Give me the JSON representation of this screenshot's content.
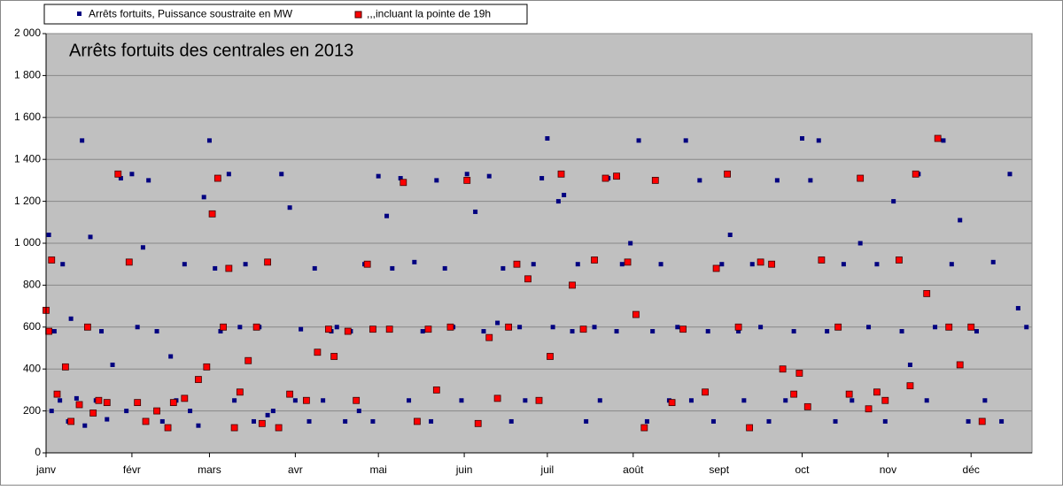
{
  "chart_data": {
    "type": "scatter",
    "title": "Arrêts fortuits des centrales en 2013",
    "xlim": [
      0,
      356
    ],
    "xticks": [
      {
        "value": 0,
        "label": "janv"
      },
      {
        "value": 31,
        "label": "févr"
      },
      {
        "value": 59,
        "label": "mars"
      },
      {
        "value": 90,
        "label": "avr"
      },
      {
        "value": 120,
        "label": "mai"
      },
      {
        "value": 151,
        "label": "juin"
      },
      {
        "value": 181,
        "label": "juil"
      },
      {
        "value": 212,
        "label": "août"
      },
      {
        "value": 243,
        "label": "sept"
      },
      {
        "value": 273,
        "label": "oct"
      },
      {
        "value": 304,
        "label": "nov"
      },
      {
        "value": 334,
        "label": "déc"
      }
    ],
    "ylim": [
      0,
      2000
    ],
    "yticks": [
      0,
      200,
      400,
      600,
      800,
      {
        "value": 1000,
        "label": "1 000"
      },
      {
        "value": 1200,
        "label": "1 200"
      },
      {
        "value": 1400,
        "label": "1 400"
      },
      {
        "value": 1600,
        "label": "1 600"
      },
      {
        "value": 1800,
        "label": "1 800"
      },
      {
        "value": 2000,
        "label": "2 000"
      }
    ],
    "grid": true,
    "series": [
      {
        "name": "Arrêts fortuits, Puissance soustraite en MW",
        "color": "#000080",
        "x": [
          1,
          2,
          3,
          5,
          6,
          8,
          9,
          11,
          13,
          14,
          16,
          18,
          20,
          22,
          24,
          27,
          29,
          31,
          33,
          35,
          37,
          40,
          42,
          45,
          47,
          50,
          52,
          55,
          57,
          59,
          61,
          63,
          66,
          68,
          70,
          72,
          75,
          77,
          80,
          82,
          85,
          88,
          90,
          92,
          95,
          97,
          100,
          103,
          105,
          108,
          110,
          113,
          115,
          118,
          120,
          123,
          125,
          128,
          131,
          133,
          136,
          139,
          141,
          144,
          147,
          150,
          152,
          155,
          158,
          160,
          163,
          165,
          168,
          171,
          173,
          176,
          179,
          181,
          183,
          185,
          187,
          190,
          192,
          195,
          198,
          200,
          203,
          206,
          208,
          211,
          214,
          217,
          219,
          222,
          225,
          228,
          231,
          233,
          236,
          239,
          241,
          244,
          247,
          250,
          252,
          255,
          258,
          261,
          264,
          267,
          270,
          273,
          276,
          279,
          282,
          285,
          288,
          291,
          294,
          297,
          300,
          303,
          306,
          309,
          312,
          315,
          318,
          321,
          324,
          327,
          330,
          333,
          336,
          339,
          342,
          345,
          348,
          351,
          354
        ],
        "values": [
          1040,
          200,
          580,
          250,
          900,
          150,
          640,
          260,
          1490,
          130,
          1030,
          250,
          580,
          160,
          420,
          1310,
          200,
          1330,
          600,
          980,
          1300,
          580,
          150,
          460,
          250,
          900,
          200,
          130,
          1220,
          1490,
          880,
          580,
          1330,
          250,
          600,
          900,
          150,
          600,
          180,
          200,
          1330,
          1170,
          250,
          590,
          150,
          880,
          250,
          580,
          600,
          150,
          580,
          200,
          900,
          150,
          1320,
          1130,
          880,
          1310,
          250,
          910,
          580,
          150,
          1300,
          880,
          600,
          250,
          1330,
          1150,
          580,
          1320,
          620,
          880,
          150,
          600,
          250,
          900,
          1310,
          1500,
          600,
          1200,
          1230,
          580,
          900,
          150,
          600,
          250,
          1310,
          580,
          900,
          1000,
          1490,
          150,
          580,
          900,
          250,
          600,
          1490,
          250,
          1300,
          580,
          150,
          900,
          1040,
          580,
          250,
          900,
          600,
          150,
          1300,
          250,
          580,
          1500,
          1300,
          1490,
          580,
          150,
          900,
          250,
          1000,
          600,
          900,
          150,
          1200,
          580,
          420,
          1330,
          250,
          600,
          1490,
          900,
          1110,
          150,
          580,
          250,
          910,
          150,
          1330,
          690,
          600
        ]
      },
      {
        "name": ",,,incluant la pointe de 19h",
        "color": "#ff0000",
        "x": [
          0,
          1,
          2,
          4,
          7,
          9,
          12,
          15,
          17,
          19,
          22,
          26,
          30,
          33,
          36,
          40,
          44,
          46,
          50,
          55,
          58,
          60,
          62,
          64,
          66,
          68,
          70,
          73,
          76,
          78,
          80,
          84,
          88,
          94,
          98,
          102,
          104,
          109,
          112,
          116,
          118,
          124,
          129,
          134,
          138,
          141,
          146,
          152,
          156,
          160,
          163,
          167,
          170,
          174,
          178,
          182,
          186,
          190,
          194,
          198,
          202,
          206,
          210,
          213,
          216,
          220,
          226,
          230,
          238,
          242,
          246,
          250,
          254,
          258,
          262,
          266,
          270,
          272,
          275,
          280,
          286,
          290,
          294,
          297,
          300,
          303,
          308,
          312,
          314,
          318,
          322,
          326,
          330,
          334,
          338
        ],
        "values": [
          680,
          580,
          920,
          280,
          410,
          150,
          230,
          600,
          190,
          250,
          240,
          1330,
          910,
          240,
          150,
          200,
          120,
          240,
          260,
          350,
          410,
          1140,
          1310,
          600,
          880,
          120,
          290,
          440,
          600,
          140,
          910,
          120,
          280,
          250,
          480,
          590,
          460,
          580,
          250,
          900,
          590,
          590,
          1290,
          150,
          590,
          300,
          600,
          1300,
          140,
          550,
          260,
          600,
          900,
          830,
          250,
          460,
          1330,
          800,
          590,
          920,
          1310,
          1320,
          910,
          660,
          120,
          1300,
          240,
          590,
          290,
          880,
          1330,
          600,
          120,
          910,
          900,
          400,
          280,
          380,
          220,
          920,
          600,
          280,
          1310,
          210,
          290,
          250,
          920,
          320,
          1330,
          760,
          1500,
          600,
          420,
          600,
          150
        ]
      }
    ]
  }
}
